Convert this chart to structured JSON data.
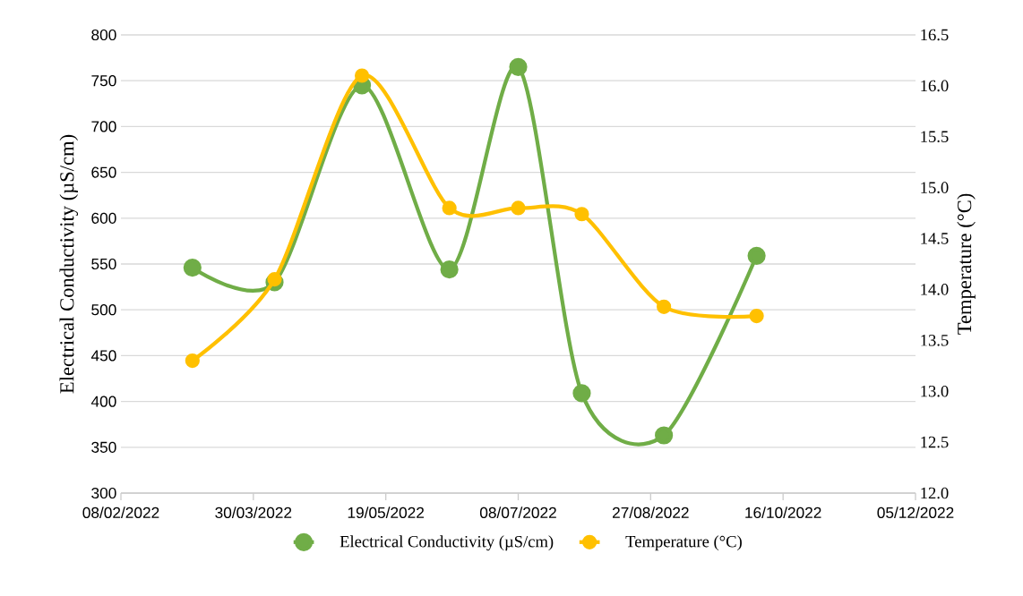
{
  "chart_data": {
    "type": "line",
    "x": [
      "2022-03-07",
      "2022-04-07",
      "2022-05-10",
      "2022-06-12",
      "2022-07-08",
      "2022-08-01",
      "2022-09-01",
      "2022-10-06"
    ],
    "series": [
      {
        "name": "Electrical Conductivity (µS/cm)",
        "color": "#70ad47",
        "values": [
          546,
          530,
          745,
          544,
          765,
          409,
          363,
          559
        ]
      },
      {
        "name": "Temperature (°C)",
        "color": "#ffc000",
        "axis": "y2",
        "values": [
          13.3,
          14.1,
          16.1,
          14.8,
          14.8,
          14.74,
          13.83,
          13.74
        ]
      }
    ],
    "ylabel": "Electrical Conductivity (µS/cm)",
    "y2label": "Temperature (°C)",
    "xlim": [
      "2022-02-08",
      "2022-12-05"
    ],
    "xticks": [
      {
        "value": "2022-02-08",
        "label": "08/02/2022"
      },
      {
        "value": "2022-03-30",
        "label": "30/03/2022"
      },
      {
        "value": "2022-05-19",
        "label": "19/05/2022"
      },
      {
        "value": "2022-07-08",
        "label": "08/07/2022"
      },
      {
        "value": "2022-08-27",
        "label": "27/08/2022"
      },
      {
        "value": "2022-10-16",
        "label": "16/10/2022"
      },
      {
        "value": "2022-12-05",
        "label": "05/12/2022"
      }
    ],
    "ylim": [
      300,
      800
    ],
    "yticks": [
      300,
      350,
      400,
      450,
      500,
      550,
      600,
      650,
      700,
      750,
      800
    ],
    "y2lim": [
      12,
      16.5
    ],
    "y2ticks": [
      {
        "value": 12,
        "label": "12.0"
      },
      12.5,
      {
        "value": 13,
        "label": "13.0"
      },
      13.5,
      {
        "value": 14,
        "label": "14.0"
      },
      14.5,
      {
        "value": 15,
        "label": "15.0"
      },
      15.5,
      {
        "value": 16,
        "label": "16.0"
      },
      16.5
    ],
    "grid": "y",
    "legend": "bottom",
    "marker": "circle",
    "line_style": "solid"
  }
}
